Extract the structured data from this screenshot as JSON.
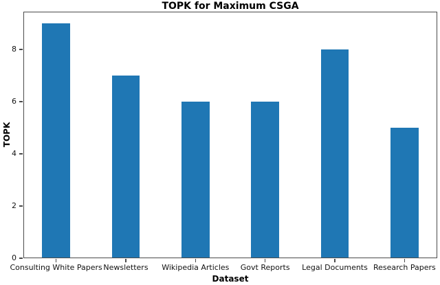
{
  "chart_data": {
    "type": "bar",
    "title": "TOPK for Maximum CSGA",
    "xlabel": "Dataset",
    "ylabel": "TOPK",
    "categories": [
      "Consulting White Papers",
      "Newsletters",
      "Wikipedia Articles",
      "Govt Reports",
      "Legal Documents",
      "Research Papers"
    ],
    "values": [
      9,
      7,
      6,
      6,
      8,
      5
    ],
    "yticks": [
      0,
      2,
      4,
      6,
      8
    ],
    "ylim": [
      0,
      9.45
    ],
    "bar_color": "#1f77b4",
    "spine_color": "#4a4a4a",
    "text_color": "#111111",
    "grid": false,
    "legend": "none"
  }
}
